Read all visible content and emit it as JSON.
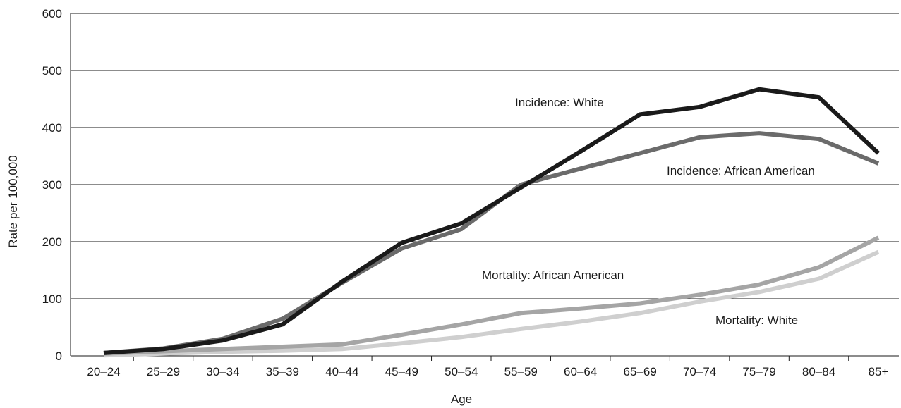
{
  "chart_data": {
    "type": "line",
    "title": "",
    "xlabel": "Age",
    "ylabel": "Rate per 100,000",
    "categories": [
      "20–24",
      "25–29",
      "30–34",
      "35–39",
      "40–44",
      "45–49",
      "50–54",
      "55–59",
      "60–64",
      "65–69",
      "70–74",
      "75–79",
      "80–84",
      "85+"
    ],
    "yticks": [
      "0",
      "100",
      "200",
      "300",
      "400",
      "500",
      "600"
    ],
    "ylim": [
      0,
      600
    ],
    "grid": true,
    "series": [
      {
        "name": "Incidence: White",
        "color": "#1a1a1a",
        "values": [
          5,
          12,
          27,
          55,
          130,
          198,
          232,
          295,
          358,
          423,
          436,
          467,
          453,
          355
        ]
      },
      {
        "name": "Incidence: African American",
        "color": "#6b6b6b",
        "values": [
          5,
          13,
          30,
          65,
          128,
          188,
          222,
          300,
          328,
          355,
          383,
          390,
          380,
          337
        ]
      },
      {
        "name": "Mortality: African American",
        "color": "#a5a5a5",
        "values": [
          4,
          8,
          12,
          16,
          20,
          37,
          55,
          75,
          83,
          92,
          107,
          125,
          155,
          207
        ]
      },
      {
        "name": "Mortality: White",
        "color": "#cfcfcf",
        "values": [
          1,
          4,
          7,
          9,
          12,
          22,
          33,
          47,
          60,
          75,
          95,
          112,
          135,
          182
        ]
      }
    ]
  }
}
